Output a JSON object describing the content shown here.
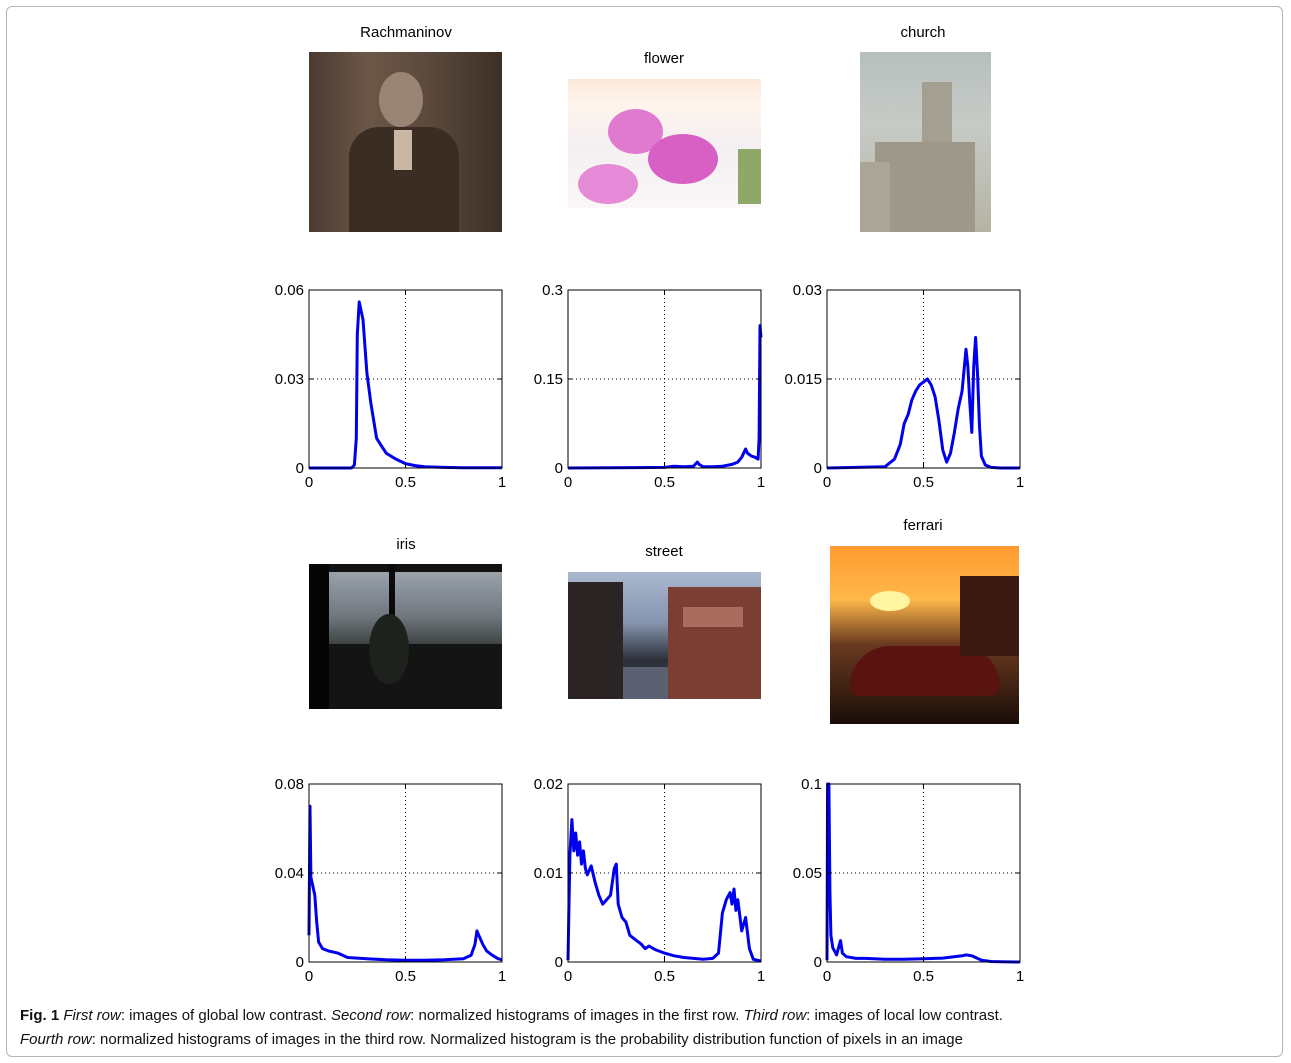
{
  "figure": {
    "row1_titles": [
      "Rachmaninov",
      "flower",
      "church"
    ],
    "row3_titles": [
      "iris",
      "street",
      "ferrari"
    ]
  },
  "caption": {
    "label": "Fig. 1",
    "first_row_term": "First row",
    "first_row_text": ": images of global low contrast. ",
    "second_row_term": "Second row",
    "second_row_text": ": normalized histograms of images in the first row. ",
    "third_row_term": "Third row",
    "third_row_text": ": images of local low contrast.",
    "fourth_row_term": "Fourth row",
    "fourth_row_text": ": normalized histograms of images in the third row. Normalized histogram is the probability distribution function of pixels in an image"
  },
  "colors": {
    "line": "#0000ee",
    "grid": "#000000",
    "frame_border": "#b5b5b5"
  },
  "chart_data": [
    {
      "type": "line",
      "grid": true,
      "xlim": [
        0,
        1
      ],
      "ylim": [
        0,
        0.06
      ],
      "xticks": [
        "0",
        "0.5",
        "1"
      ],
      "yticks": [
        "0",
        "0.03",
        "0.06"
      ],
      "x": [
        0,
        0.2,
        0.22,
        0.235,
        0.245,
        0.25,
        0.26,
        0.28,
        0.3,
        0.32,
        0.35,
        0.4,
        0.45,
        0.5,
        0.55,
        0.6,
        0.7,
        0.8,
        0.9,
        1.0
      ],
      "y": [
        0,
        0,
        0,
        0.001,
        0.01,
        0.045,
        0.056,
        0.05,
        0.032,
        0.022,
        0.01,
        0.005,
        0.003,
        0.0015,
        0.0008,
        0.0004,
        0.0002,
        0.0001,
        0.0001,
        0.0001
      ]
    },
    {
      "type": "line",
      "grid": true,
      "xlim": [
        0,
        1
      ],
      "ylim": [
        0,
        0.3
      ],
      "xticks": [
        "0",
        "0.5",
        "1"
      ],
      "yticks": [
        "0",
        "0.15",
        "0.3"
      ],
      "x": [
        0,
        0.5,
        0.55,
        0.6,
        0.65,
        0.67,
        0.68,
        0.7,
        0.75,
        0.8,
        0.85,
        0.88,
        0.9,
        0.92,
        0.93,
        0.95,
        0.97,
        0.985,
        0.99,
        0.995,
        1.0
      ],
      "y": [
        0,
        0.001,
        0.003,
        0.002,
        0.003,
        0.01,
        0.006,
        0.002,
        0.002,
        0.003,
        0.006,
        0.01,
        0.018,
        0.032,
        0.025,
        0.02,
        0.018,
        0.015,
        0.05,
        0.24,
        0.22
      ]
    },
    {
      "type": "line",
      "grid": true,
      "xlim": [
        0,
        1
      ],
      "ylim": [
        0,
        0.03
      ],
      "xticks": [
        "0",
        "0.5",
        "1"
      ],
      "yticks": [
        "0",
        "0.015",
        "0.03"
      ],
      "x": [
        0,
        0.3,
        0.35,
        0.38,
        0.4,
        0.42,
        0.44,
        0.46,
        0.48,
        0.5,
        0.52,
        0.54,
        0.56,
        0.58,
        0.6,
        0.62,
        0.64,
        0.66,
        0.68,
        0.7,
        0.72,
        0.73,
        0.74,
        0.75,
        0.76,
        0.77,
        0.78,
        0.79,
        0.8,
        0.82,
        0.85,
        0.9,
        1.0
      ],
      "y": [
        0,
        0.0002,
        0.0015,
        0.004,
        0.0075,
        0.009,
        0.0115,
        0.013,
        0.014,
        0.0145,
        0.015,
        0.014,
        0.012,
        0.008,
        0.003,
        0.001,
        0.0025,
        0.006,
        0.01,
        0.013,
        0.02,
        0.017,
        0.011,
        0.006,
        0.017,
        0.022,
        0.016,
        0.007,
        0.002,
        0.0005,
        0.0001,
        0,
        0
      ]
    },
    {
      "type": "line",
      "grid": true,
      "xlim": [
        0,
        1
      ],
      "ylim": [
        0,
        0.08
      ],
      "xticks": [
        "0",
        "0.5",
        "1"
      ],
      "yticks": [
        "0",
        "0.04",
        "0.08"
      ],
      "x": [
        0,
        0.005,
        0.01,
        0.02,
        0.03,
        0.04,
        0.05,
        0.07,
        0.1,
        0.15,
        0.2,
        0.3,
        0.4,
        0.5,
        0.6,
        0.7,
        0.8,
        0.84,
        0.86,
        0.87,
        0.88,
        0.9,
        0.92,
        0.95,
        0.98,
        1.0
      ],
      "y": [
        0.012,
        0.07,
        0.038,
        0.034,
        0.03,
        0.018,
        0.009,
        0.006,
        0.005,
        0.004,
        0.002,
        0.0015,
        0.001,
        0.0008,
        0.0008,
        0.001,
        0.0015,
        0.003,
        0.008,
        0.014,
        0.012,
        0.008,
        0.005,
        0.003,
        0.0015,
        0.001
      ]
    },
    {
      "type": "line",
      "grid": true,
      "xlim": [
        0,
        1
      ],
      "ylim": [
        0,
        0.02
      ],
      "xticks": [
        "0",
        "0.5",
        "1"
      ],
      "yticks": [
        "0",
        "0.01",
        "0.02"
      ],
      "x": [
        0,
        0.01,
        0.02,
        0.03,
        0.04,
        0.05,
        0.06,
        0.07,
        0.08,
        0.09,
        0.1,
        0.12,
        0.14,
        0.16,
        0.18,
        0.2,
        0.22,
        0.24,
        0.25,
        0.26,
        0.28,
        0.3,
        0.32,
        0.35,
        0.38,
        0.4,
        0.42,
        0.45,
        0.5,
        0.55,
        0.6,
        0.65,
        0.7,
        0.75,
        0.78,
        0.8,
        0.82,
        0.84,
        0.85,
        0.86,
        0.87,
        0.88,
        0.9,
        0.92,
        0.94,
        0.96,
        1.0
      ],
      "y": [
        0.0002,
        0.012,
        0.016,
        0.0125,
        0.0145,
        0.012,
        0.0135,
        0.011,
        0.0125,
        0.0105,
        0.0098,
        0.0108,
        0.009,
        0.0075,
        0.0065,
        0.007,
        0.0075,
        0.0105,
        0.011,
        0.0065,
        0.005,
        0.0045,
        0.003,
        0.0025,
        0.002,
        0.0015,
        0.0018,
        0.0014,
        0.001,
        0.0007,
        0.0005,
        0.0004,
        0.0003,
        0.0004,
        0.001,
        0.0055,
        0.007,
        0.0078,
        0.0065,
        0.0082,
        0.0058,
        0.007,
        0.0035,
        0.005,
        0.0015,
        0.0003,
        0.0001
      ]
    },
    {
      "type": "line",
      "grid": true,
      "xlim": [
        0,
        1
      ],
      "ylim": [
        0,
        0.1
      ],
      "xticks": [
        "0",
        "0.5",
        "1"
      ],
      "yticks": [
        "0",
        "0.05",
        "0.1"
      ],
      "x": [
        0,
        0.003,
        0.006,
        0.01,
        0.015,
        0.02,
        0.03,
        0.05,
        0.07,
        0.08,
        0.1,
        0.15,
        0.2,
        0.3,
        0.4,
        0.5,
        0.6,
        0.7,
        0.72,
        0.75,
        0.78,
        0.8,
        0.85,
        0.9,
        1.0
      ],
      "y": [
        0.001,
        0.1,
        0.1,
        0.1,
        0.04,
        0.015,
        0.008,
        0.004,
        0.012,
        0.005,
        0.003,
        0.002,
        0.002,
        0.0015,
        0.0015,
        0.0018,
        0.0022,
        0.0035,
        0.004,
        0.0035,
        0.002,
        0.001,
        0.0003,
        0.0001,
        0
      ]
    }
  ]
}
